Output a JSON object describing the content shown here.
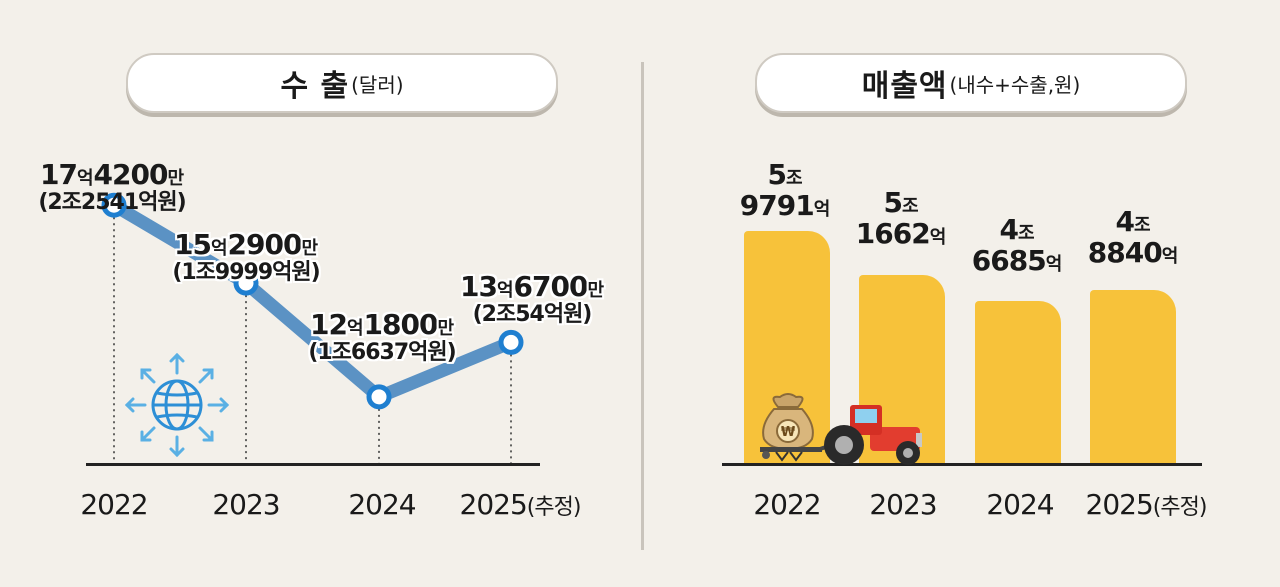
{
  "export_panel": {
    "title_main": "수 출",
    "title_sub": "(달러)"
  },
  "sales_panel": {
    "title_main": "매출액",
    "title_sub": "(내수+수출,원)"
  },
  "chart_data": [
    {
      "type": "line",
      "categories": [
        "2022",
        "2023",
        "2024",
        "2025(추정)"
      ],
      "series": [
        {
          "values": [
            1742000000,
            1529000000,
            1218000000,
            1367000000
          ]
        }
      ],
      "data_labels": [
        {
          "usd_num1": "17",
          "usd_unit1": "억",
          "usd_num2": "4200",
          "usd_unit2": "만",
          "krw": "(2조2541억원)"
        },
        {
          "usd_num1": "15",
          "usd_unit1": "억",
          "usd_num2": "2900",
          "usd_unit2": "만",
          "krw": "(1조9999억원)"
        },
        {
          "usd_num1": "12",
          "usd_unit1": "억",
          "usd_num2": "1800",
          "usd_unit2": "만",
          "krw": "(1조6637억원)"
        },
        {
          "usd_num1": "13",
          "usd_unit1": "억",
          "usd_num2": "6700",
          "usd_unit2": "만",
          "krw": "(2조54억원)"
        }
      ],
      "colors": {
        "line": "#5b92c4",
        "marker_stroke": "#1f7fd0",
        "marker_fill": "#ffffff"
      }
    },
    {
      "type": "bar",
      "categories": [
        "2022",
        "2023",
        "2024",
        "2025(추정)"
      ],
      "series": [
        {
          "values": [
            59791,
            51662,
            46685,
            48840
          ]
        }
      ],
      "data_labels": [
        {
          "jo_num": "5",
          "jo_unit": "조",
          "eok_num": "9791",
          "eok_unit": "억"
        },
        {
          "jo_num": "5",
          "jo_unit": "조",
          "eok_num": "1662",
          "eok_unit": "억"
        },
        {
          "jo_num": "4",
          "jo_unit": "조",
          "eok_num": "6685",
          "eok_unit": "억"
        },
        {
          "jo_num": "4",
          "jo_unit": "조",
          "eok_num": "8840",
          "eok_unit": "억"
        }
      ],
      "colors": {
        "bar": "#f7c23a"
      }
    }
  ],
  "x_labels": [
    {
      "year": "2022",
      "note": ""
    },
    {
      "year": "2023",
      "note": ""
    },
    {
      "year": "2024",
      "note": ""
    },
    {
      "year": "2025",
      "note": "(추정)"
    }
  ],
  "icons": {
    "export": "globe-arrows-icon",
    "sales": "tractor-icon",
    "money_bag": "money-bag-icon",
    "money_symbol": "₩"
  }
}
